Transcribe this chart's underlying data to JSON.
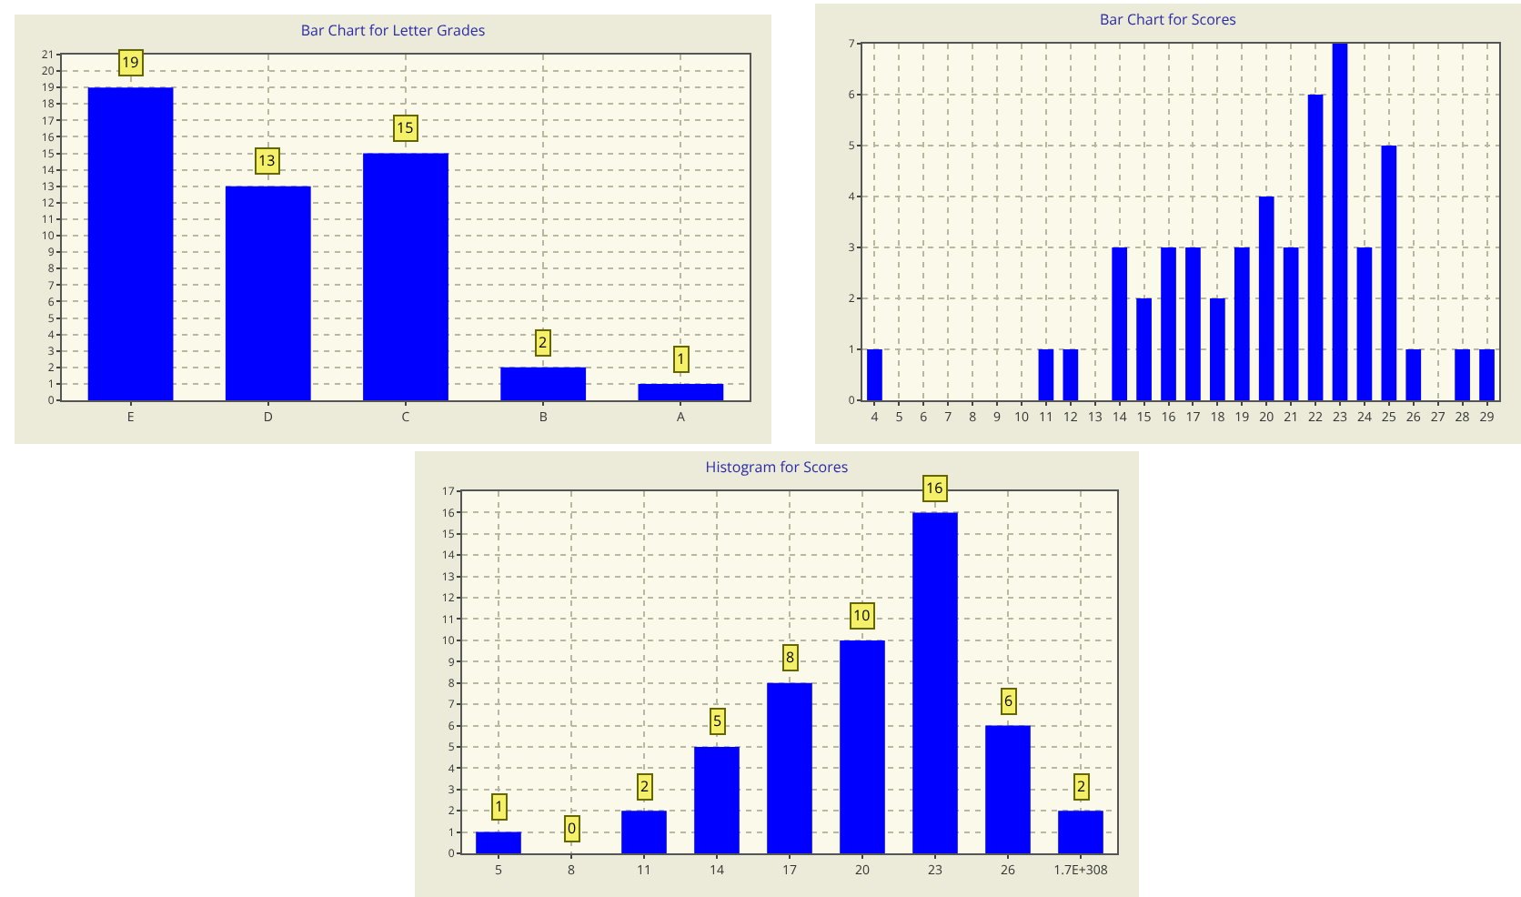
{
  "chart_data": [
    {
      "type": "bar",
      "title": "Bar Chart for Letter Grades",
      "categories": [
        "E",
        "D",
        "C",
        "B",
        "A"
      ],
      "values": [
        19,
        13,
        15,
        2,
        1
      ],
      "color": "#0000ff",
      "ylim": [
        0,
        21
      ],
      "yticks": [
        0,
        1,
        2,
        3,
        4,
        5,
        6,
        7,
        8,
        9,
        10,
        11,
        12,
        13,
        14,
        15,
        16,
        17,
        18,
        19,
        20,
        21
      ],
      "grid": true,
      "data_labels": true
    },
    {
      "type": "bar",
      "title": "Bar Chart for Scores",
      "categories": [
        "4",
        "5",
        "6",
        "7",
        "8",
        "9",
        "10",
        "11",
        "12",
        "13",
        "14",
        "15",
        "16",
        "17",
        "18",
        "19",
        "20",
        "21",
        "22",
        "23",
        "24",
        "25",
        "26",
        "27",
        "28",
        "29"
      ],
      "values": [
        1,
        0,
        0,
        0,
        0,
        0,
        0,
        1,
        1,
        0,
        3,
        2,
        3,
        3,
        2,
        3,
        4,
        3,
        6,
        7,
        3,
        5,
        1,
        0,
        1,
        1
      ],
      "color": "#0000ff",
      "ylim": [
        0,
        7
      ],
      "yticks": [
        0,
        1,
        2,
        3,
        4,
        5,
        6,
        7
      ],
      "grid": true
    },
    {
      "type": "bar",
      "title": "Histogram for Scores",
      "categories": [
        "5",
        "8",
        "11",
        "14",
        "17",
        "20",
        "23",
        "26",
        "1.7E+308"
      ],
      "values": [
        1,
        0,
        2,
        5,
        8,
        10,
        16,
        6,
        2
      ],
      "color": "#0000ff",
      "ylim": [
        0,
        17
      ],
      "yticks": [
        0,
        1,
        2,
        3,
        4,
        5,
        6,
        7,
        8,
        9,
        10,
        11,
        12,
        13,
        14,
        15,
        16,
        17
      ],
      "grid": true,
      "data_labels": true
    }
  ]
}
